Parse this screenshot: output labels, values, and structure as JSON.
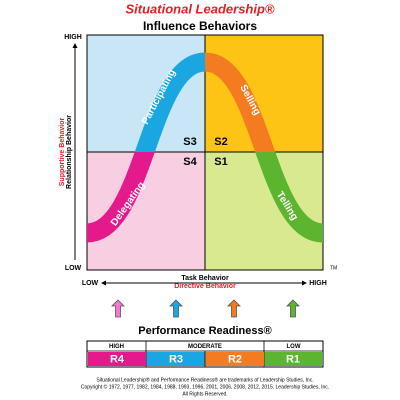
{
  "title": "Situational Leadership®",
  "subtitle": "Influence Behaviors",
  "y_axis": {
    "high": "HIGH",
    "low": "LOW",
    "label_red": "Supportive Behavior",
    "label": "Relationship Behavior"
  },
  "x_axis": {
    "low": "LOW",
    "high": "HIGH",
    "label": "Task Behavior",
    "label_red": "Directive Behavior"
  },
  "quadrants": [
    {
      "style": "S3",
      "behavior": "Participating"
    },
    {
      "style": "S2",
      "behavior": "Selling"
    },
    {
      "style": "S4",
      "behavior": "Delegating"
    },
    {
      "style": "S1",
      "behavior": "Telling"
    }
  ],
  "trademark": "TM",
  "readiness": {
    "title": "Performance Readiness®",
    "headers": [
      "HIGH",
      "MODERATE",
      "LOW"
    ],
    "levels": [
      "R4",
      "R3",
      "R2",
      "R1"
    ]
  },
  "footer": [
    "Situational Leadership® and Performance Readiness® are trademarks of Leadership Studies, Inc.",
    "Copyright © 1972, 1977, 1982, 1984, 1988, 1993, 1996, 2001, 2006, 2008, 2012, 2015, Leadership Studies, Inc.",
    "All Rights Reserved."
  ]
}
